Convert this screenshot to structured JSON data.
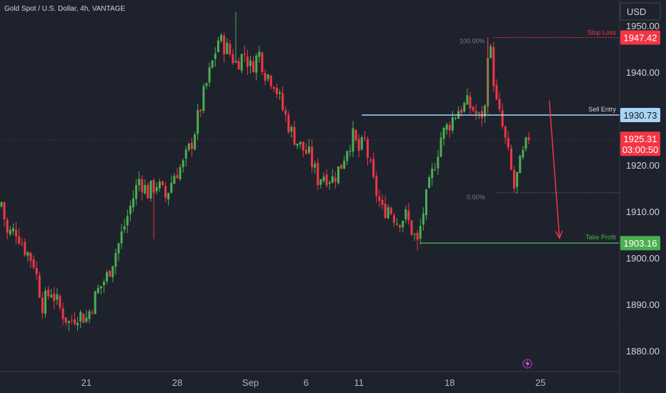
{
  "header": {
    "symbol_title": "Gold Spot / U.S. Dollar, 4h, VANTAGE",
    "currency_button": "USD"
  },
  "colors": {
    "background": "#1e222d",
    "up": "#4caf50",
    "down": "#f23645",
    "sell_line": "#a9d4f5",
    "stop_loss": "#f23645",
    "take_profit": "#4caf50",
    "arrow": "#f23645",
    "grid": "#2a2e39",
    "axis_text": "#b2b5be"
  },
  "chart_data": {
    "type": "candlestick",
    "title": "Gold Spot / U.S. Dollar, 4h, VANTAGE",
    "currency": "USD",
    "x_tick_labels": [
      "21",
      "28",
      "Sep",
      "6",
      "11",
      "18",
      "25"
    ],
    "y_ticks": [
      1880.0,
      1890.0,
      1900.0,
      1910.0,
      1920.0,
      1930.0,
      1940.0,
      1950.0
    ],
    "ylim": [
      1875.5,
      1955.5
    ],
    "current_price": {
      "value": "1925.31",
      "countdown": "03:00:50"
    },
    "levels": {
      "stop_loss": {
        "label": "Stop Loss",
        "price": "1947.42"
      },
      "sell_entry": {
        "label": "Sell Entry",
        "price": "1930.73"
      },
      "take_profit": {
        "label": "Take Profit",
        "price": "1903.16"
      }
    },
    "fib_labels": {
      "top": "100.00%",
      "bottom": "0.00%"
    },
    "close_path": [
      [
        0,
        1912
      ],
      [
        2,
        1905
      ],
      [
        5,
        1906
      ],
      [
        8,
        1902
      ],
      [
        11,
        1899
      ],
      [
        14,
        1890
      ],
      [
        17,
        1893
      ],
      [
        20,
        1889
      ],
      [
        23,
        1886
      ],
      [
        26,
        1888
      ],
      [
        29,
        1887
      ],
      [
        33,
        1893
      ],
      [
        36,
        1896
      ],
      [
        40,
        1903
      ],
      [
        44,
        1911
      ],
      [
        47,
        1917
      ],
      [
        50,
        1914
      ],
      [
        53,
        1916
      ],
      [
        56,
        1913
      ],
      [
        59,
        1918
      ],
      [
        62,
        1920
      ],
      [
        65,
        1925
      ],
      [
        69,
        1935
      ],
      [
        72,
        1942
      ],
      [
        74,
        1947
      ],
      [
        77,
        1945
      ],
      [
        80,
        1942
      ],
      [
        83,
        1944
      ],
      [
        85,
        1941
      ],
      [
        88,
        1944
      ],
      [
        90,
        1940
      ],
      [
        93,
        1938
      ],
      [
        96,
        1932
      ],
      [
        99,
        1927
      ],
      [
        102,
        1924
      ],
      [
        105,
        1922
      ],
      [
        108,
        1917
      ],
      [
        110,
        1918
      ],
      [
        113,
        1917
      ],
      [
        116,
        1920
      ],
      [
        118,
        1924
      ],
      [
        120,
        1926
      ],
      [
        122,
        1923
      ],
      [
        124,
        1925
      ],
      [
        127,
        1916
      ],
      [
        130,
        1910
      ],
      [
        132,
        1911
      ],
      [
        135,
        1908
      ],
      [
        138,
        1909
      ],
      [
        140,
        1906
      ],
      [
        142,
        1903
      ],
      [
        144,
        1910
      ],
      [
        147,
        1918
      ],
      [
        150,
        1926
      ],
      [
        153,
        1929
      ],
      [
        156,
        1932
      ],
      [
        159,
        1933
      ],
      [
        161,
        1932
      ],
      [
        163,
        1930
      ],
      [
        165,
        1932
      ],
      [
        166,
        1945
      ],
      [
        167,
        1944
      ],
      [
        169,
        1933
      ],
      [
        171,
        1928
      ],
      [
        173,
        1922
      ],
      [
        175,
        1915
      ],
      [
        177,
        1920
      ],
      [
        179,
        1924
      ],
      [
        180,
        1925.31
      ]
    ],
    "bars": 181,
    "extra_wicks": [
      {
        "i": 52,
        "low": 1904
      },
      {
        "i": 80,
        "high": 1953
      },
      {
        "i": 142,
        "low": 1901.5
      },
      {
        "i": 166,
        "high": 1946.5
      },
      {
        "i": 175,
        "low": 1914
      }
    ],
    "projection_arrow": {
      "from_bar": 167,
      "from_price": 1928,
      "to_bar": 179,
      "to_price": 1905
    }
  }
}
